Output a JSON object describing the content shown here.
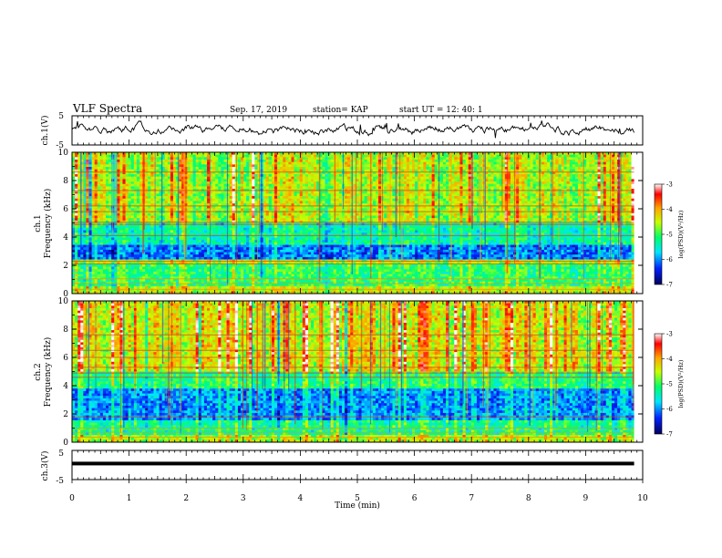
{
  "header": {
    "title": "VLF Spectra",
    "date": "Sep. 17, 2019",
    "station": "station= KAP",
    "start_ut": "start  UT  =   12: 40: 1"
  },
  "colors": {
    "spectrum_stops": [
      "#00005a",
      "#0022ff",
      "#00e5ff",
      "#00ff6a",
      "#c8ff00",
      "#ffa500",
      "#ff0000",
      "#ffffff"
    ]
  },
  "chart_data": [
    {
      "type": "line",
      "panel": "ch1-waveform",
      "ylabel": "ch.1(V)",
      "yticks": [
        "5",
        "-5"
      ],
      "ylim": [
        -5,
        5
      ],
      "xlim": [
        0,
        10
      ],
      "data_extent_min": 9.85,
      "approx_level_V": [
        -1.5,
        2
      ]
    },
    {
      "type": "heatmap",
      "panel": "ch1-spectrogram",
      "ylabel": "ch.1\nFrequency (kHz)",
      "yticks": [
        "0",
        "2",
        "4",
        "6",
        "8",
        "10"
      ],
      "ylim": [
        0,
        10
      ],
      "xlim": [
        0,
        10
      ],
      "data_extent_min": 9.85,
      "colorbar": {
        "label": "log(PSD)(V²/Hz)",
        "range": [
          -7,
          -3
        ],
        "ticks": [
          "-3",
          "-4",
          "-5",
          "-6",
          "-7"
        ]
      },
      "approx_log_psd_by_band": [
        {
          "khz": [
            0,
            0.5
          ],
          "value": -4.5
        },
        {
          "khz": [
            0.5,
            2
          ],
          "value": -5.1
        },
        {
          "khz": [
            2,
            2.4
          ],
          "value": -4.6
        },
        {
          "khz": [
            2.4,
            3.5
          ],
          "value": -6.1
        },
        {
          "khz": [
            3.5,
            5
          ],
          "value": -5.4
        },
        {
          "khz": [
            5,
            10
          ],
          "value": -4.6
        }
      ],
      "approx_hum_lines_khz": [
        0.3,
        0.7,
        1.05,
        2.1,
        2.3,
        4.1,
        4.9,
        5.05,
        5.8,
        6.2,
        7.3,
        8.6
      ]
    },
    {
      "type": "heatmap",
      "panel": "ch2-spectrogram",
      "ylabel": "ch.2\nFrequency (kHz)",
      "yticks": [
        "0",
        "2",
        "4",
        "6",
        "8",
        "10"
      ],
      "ylim": [
        0,
        10
      ],
      "xlim": [
        0,
        10
      ],
      "data_extent_min": 9.85,
      "colorbar": {
        "label": "log(PSD)(V²/Hz)",
        "range": [
          -7,
          -3
        ],
        "ticks": [
          "-3",
          "-4",
          "-5",
          "-6",
          "-7"
        ]
      },
      "approx_log_psd_by_band": [
        {
          "khz": [
            0,
            0.5
          ],
          "value": -4.6
        },
        {
          "khz": [
            0.5,
            1.5
          ],
          "value": -5.3
        },
        {
          "khz": [
            1.5,
            3.8
          ],
          "value": -6.0
        },
        {
          "khz": [
            3.8,
            5
          ],
          "value": -5.2
        },
        {
          "khz": [
            5,
            10
          ],
          "value": -4.4
        }
      ],
      "approx_hum_lines_khz": [
        0.35,
        0.7,
        1.0,
        1.8,
        4.6,
        4.9,
        5.3,
        6.0,
        6.5,
        7.6
      ]
    },
    {
      "type": "line",
      "panel": "ch3-waveform",
      "ylabel": "ch.3(V)",
      "yticks": [
        "5",
        "-5"
      ],
      "ylim": [
        -5,
        5
      ],
      "xlim": [
        0,
        10
      ],
      "data_extent_min": 9.85,
      "approx_level_V": [
        0.5,
        0.5
      ]
    },
    {
      "type": "axis",
      "xlabel": "Time  (min)",
      "xticks": [
        "0",
        "1",
        "2",
        "3",
        "4",
        "5",
        "6",
        "7",
        "8",
        "9",
        "10"
      ]
    }
  ]
}
